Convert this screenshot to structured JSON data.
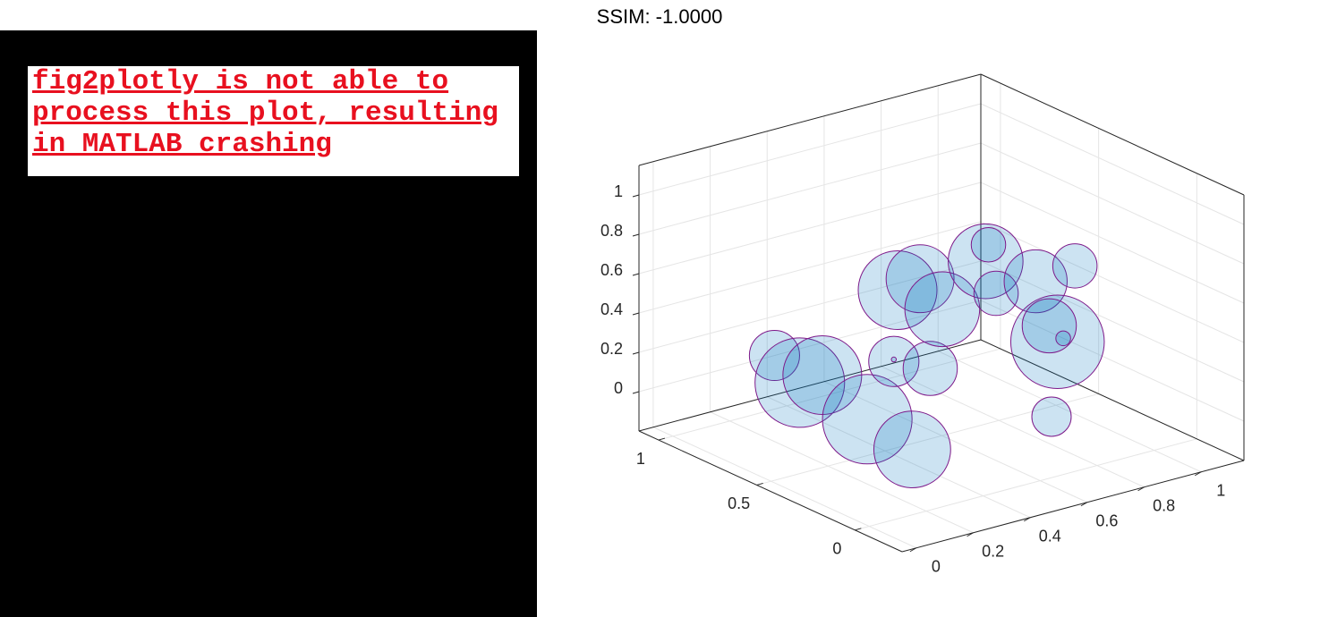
{
  "notice": {
    "lines": [
      "fig2plotly is not able to",
      "process this plot, resulting",
      "in MATLAB crashing"
    ]
  },
  "chart_data": {
    "type": "bubble3d",
    "title": "SSIM: -1.0000",
    "color": "#0072bd",
    "edgecolor": "#7e1a8a",
    "grid": true,
    "xlim": [
      -0.05,
      1.15
    ],
    "ylim": [
      -0.24,
      1.1
    ],
    "zlim": [
      -0.2,
      1.15
    ],
    "xticks": [
      0,
      0.2,
      0.4,
      0.6,
      0.8,
      1
    ],
    "yticks": [
      0,
      0.5,
      1
    ],
    "zticks": [
      0,
      0.2,
      0.4,
      0.6,
      0.8,
      1
    ],
    "x": [
      0.15,
      0.17,
      0.18,
      0.2,
      0.22,
      0.5,
      0.5,
      0.49,
      0.72,
      0.73,
      0.67,
      0.96,
      0.97,
      0.79,
      0.86,
      0.86,
      0.73,
      0.77,
      0.75,
      0.64
    ],
    "y": [
      0.7,
      0.6,
      0.5,
      0.3,
      0.1,
      0.6,
      0.6,
      0.4,
      0.9,
      0.8,
      0.6,
      0.8,
      0.8,
      0.5,
      0.4,
      0.2,
      0.1,
      0.2,
      0.1,
      0.0
    ],
    "z": [
      0.29,
      0.19,
      0.27,
      0.13,
      0.06,
      0.17,
      0.18,
      0.23,
      0.31,
      0.41,
      0.37,
      0.41,
      0.49,
      0.45,
      0.53,
      0.7,
      0.41,
      0.43,
      0.42,
      0.11
    ],
    "sizes": [
      0.51,
      0.91,
      0.8,
      0.91,
      0.78,
      0.51,
      0.05,
      0.55,
      0.8,
      0.69,
      0.76,
      0.76,
      0.35,
      0.45,
      0.64,
      0.45,
      0.95,
      0.55,
      0.15,
      0.4
    ]
  }
}
